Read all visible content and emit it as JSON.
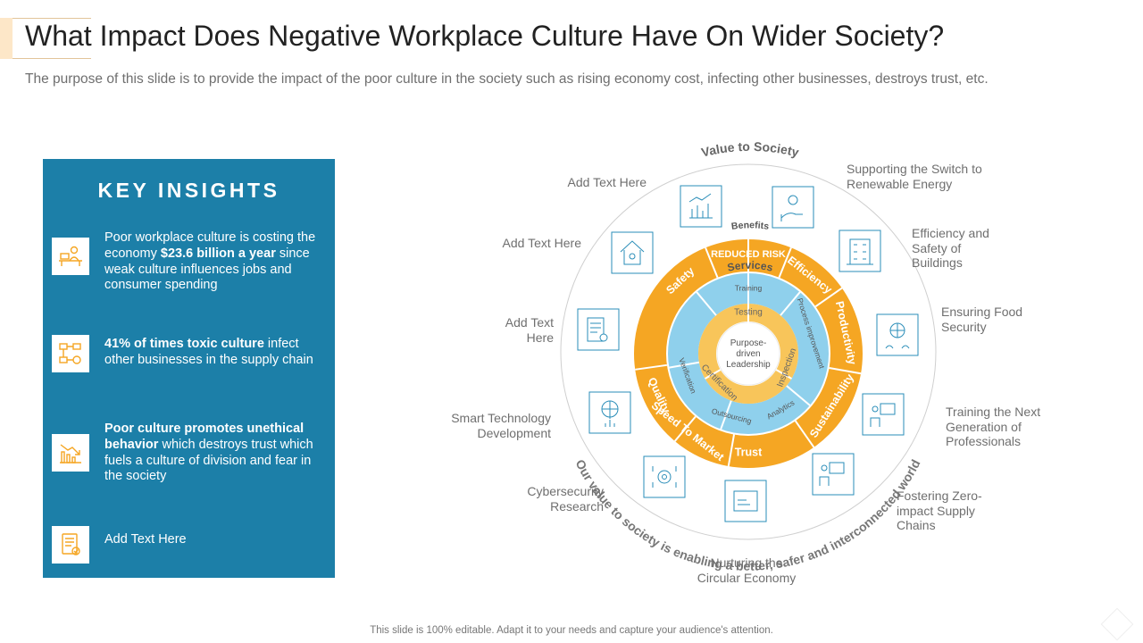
{
  "title": "What Impact Does Negative Workplace Culture Have On Wider Society?",
  "subtitle": "The purpose of this slide is to provide the impact of the poor culture in the society such as rising economy cost, infecting other businesses, destroys trust, etc.",
  "panel": {
    "heading": "KEY INSIGHTS",
    "insights": [
      {
        "icon": "worker-desk-icon",
        "pre": "Poor workplace culture is costing the economy ",
        "bold": "$23.6 billion a year",
        "post": " since weak culture influences jobs and consumer spending"
      },
      {
        "icon": "supply-chain-icon",
        "pre": "",
        "bold": "41% of times toxic culture",
        "post": " infect other businesses in the supply chain"
      },
      {
        "icon": "declining-chart-icon",
        "pre": "",
        "bold": "Poor culture promotes unethical behavior",
        "post": " which destroys trust which fuels a culture of division and fear in the society"
      },
      {
        "icon": "checklist-icon",
        "pre": "Add Text Here",
        "bold": "",
        "post": ""
      }
    ]
  },
  "wheel": {
    "top_arc_text": "Value to Society",
    "bottom_arc_text": "Our value to society is enabling a better, safer and interconnected world",
    "center_text": [
      "Purpose-",
      "driven",
      "Leadership"
    ],
    "benefits_label": "Benefits",
    "orange_segments": [
      "Safety",
      "REDUCED RISK",
      "Efficiency",
      "Productivity",
      "Sustainability",
      "Trust",
      "Speed To Market",
      "Quality"
    ],
    "services_label": "Services",
    "blue_segments": [
      "Training",
      "Process improvement",
      "Analytics",
      "Outsourcing",
      "Verification"
    ],
    "inner_segments": [
      "Testing",
      "Inspection",
      "Certification"
    ]
  },
  "labels": {
    "l1": "Add Text Here",
    "l2": "Supporting the Switch to Renewable Energy",
    "l3": "Add Text Here",
    "l4": "Efficiency and Safety of Buildings",
    "l5a": "Add Text",
    "l5b": "Here",
    "l6": "Ensuring Food Security",
    "l7a": "Smart Technology",
    "l7b": "Development",
    "l8": "Training the Next Generation of Professionals",
    "l9a": "Cybersecurity",
    "l9b": "Research",
    "l10": "Fostering Zero-impact Supply Chains",
    "l11": "Nurturing the Circular Economy"
  },
  "wheel_icons": [
    "bar-chart-icon",
    "hand-care-icon",
    "home-group-icon",
    "building-icon",
    "document-check-icon",
    "globe-people-icon",
    "globe-network-icon",
    "presenter-board-icon",
    "gear-circuit-icon",
    "presenter-icon",
    "recycle-card-icon"
  ],
  "colors": {
    "panel": "#1c7fa8",
    "orange": "#f5a623",
    "light_blue": "#8fd0ec",
    "inner_yellow": "#f8c55a",
    "icon_stroke": "#2a8db8"
  },
  "footer": "This slide is 100% editable. Adapt it to your needs and capture your audience's attention."
}
